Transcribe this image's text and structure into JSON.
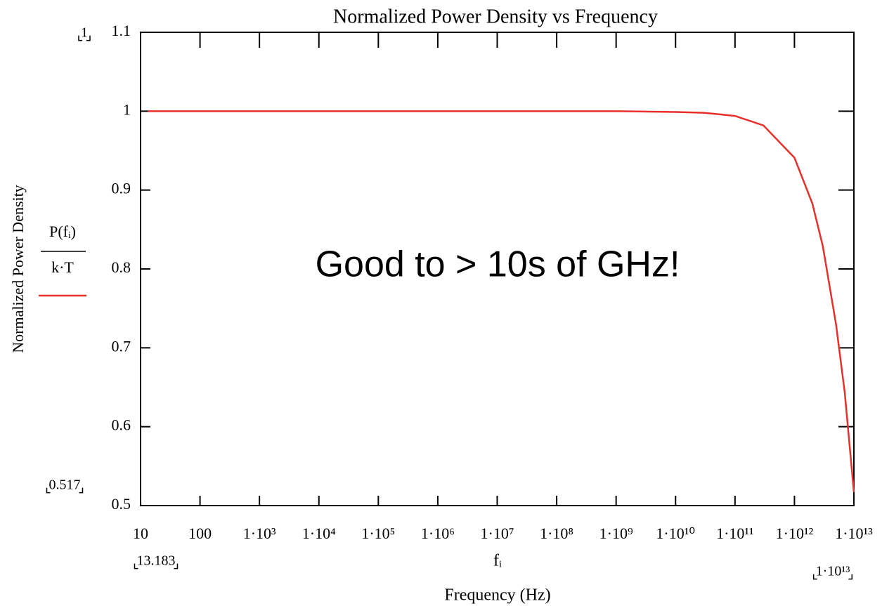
{
  "chart_data": {
    "type": "line",
    "title": "Normalized Power Density vs Frequency",
    "xlabel": "Frequency (Hz)",
    "ylabel": "Normalized Power Density",
    "x_expression": "fᵢ",
    "y_expression": {
      "numerator": "P(fᵢ)",
      "denominator": "k·T"
    },
    "annotation": "Good to > 10s of GHz!",
    "range_labels": {
      "ymax": "1",
      "ymin": "0.517",
      "xmin": "13.183",
      "xmax": "1·10¹³"
    },
    "xscale": "log",
    "xlim": [
      10,
      10000000000000
    ],
    "ylim": [
      0.5,
      1.1
    ],
    "xticks": [
      10,
      100,
      {
        "value": 1000,
        "label": "1·10³"
      },
      {
        "value": 10000,
        "label": "1·10⁴"
      },
      {
        "value": 100000,
        "label": "1·10⁵"
      },
      {
        "value": 1000000,
        "label": "1·10⁶"
      },
      {
        "value": 10000000,
        "label": "1·10⁷"
      },
      {
        "value": 100000000,
        "label": "1·10⁸"
      },
      {
        "value": 1000000000,
        "label": "1·10⁹"
      },
      {
        "value": 10000000000,
        "label": "1·10¹⁰"
      },
      {
        "value": 100000000000,
        "label": "1·10¹¹"
      },
      {
        "value": 1000000000000,
        "label": "1·10¹²"
      },
      {
        "value": 10000000000000,
        "label": "1·10¹³"
      }
    ],
    "yticks": [
      0.5,
      0.6,
      0.7,
      0.8,
      0.9,
      1,
      1.1
    ],
    "x": [
      13.183,
      1000,
      1000000,
      1000000000,
      10000000000,
      30000000000,
      100000000000,
      300000000000,
      1000000000000,
      2000000000000,
      3000000000000,
      5000000000000,
      7000000000000,
      10000000000000
    ],
    "series": [
      {
        "color": "#e8302a",
        "values": [
          1,
          1,
          1,
          1,
          0.999,
          0.998,
          0.994,
          0.982,
          0.941,
          0.883,
          0.829,
          0.73,
          0.644,
          0.517
        ]
      }
    ]
  }
}
